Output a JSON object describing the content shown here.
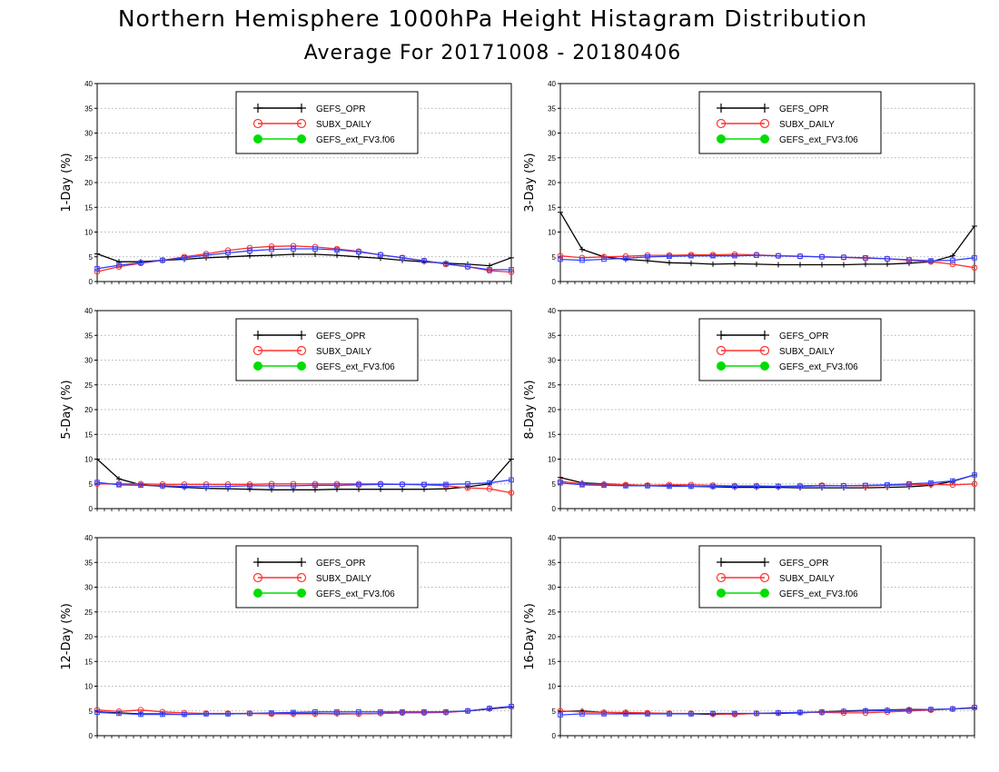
{
  "title": "Northern Hemisphere 1000hPa Height Histagram Distribution",
  "subtitle": "Average For 20171008 - 20180406",
  "colors": {
    "GEFS_OPR": "#000000",
    "SUBX_DAILY": "#ff3030",
    "GEFS_ext_FV3.f06": "#00dd00",
    "blue_series": "#3040ff"
  },
  "legend_labels": [
    "GEFS_OPR",
    "SUBX_DAILY",
    "GEFS_ext_FV3.f06"
  ],
  "chart_data": [
    {
      "type": "line",
      "ylabel": "1-Day (%)",
      "ylim": [
        0,
        40
      ],
      "yticks": [
        0,
        5,
        10,
        15,
        20,
        25,
        30,
        35,
        40
      ],
      "grid": true,
      "legend": "top-center",
      "series": [
        {
          "name": "GEFS_OPR",
          "values": [
            5.6,
            4.0,
            4.0,
            4.3,
            4.5,
            4.8,
            5.0,
            5.2,
            5.3,
            5.5,
            5.5,
            5.3,
            5.0,
            4.7,
            4.3,
            4.0,
            3.7,
            3.5,
            3.2,
            4.8
          ]
        },
        {
          "name": "SUBX_DAILY",
          "values": [
            2.0,
            3.0,
            3.7,
            4.3,
            5.0,
            5.6,
            6.3,
            6.8,
            7.1,
            7.2,
            7.0,
            6.6,
            6.1,
            5.4,
            4.8,
            4.2,
            3.5,
            3.0,
            2.2,
            1.9
          ]
        },
        {
          "values": [
            2.6,
            3.3,
            3.8,
            4.3,
            4.8,
            5.3,
            5.8,
            6.2,
            6.5,
            6.6,
            6.6,
            6.4,
            6.0,
            5.4,
            4.8,
            4.2,
            3.6,
            3.0,
            2.4,
            2.4
          ]
        }
      ]
    },
    {
      "type": "line",
      "ylabel": "3-Day (%)",
      "ylim": [
        0,
        40
      ],
      "yticks": [
        0,
        5,
        10,
        15,
        20,
        25,
        30,
        35,
        40
      ],
      "grid": true,
      "legend": "top-center",
      "series": [
        {
          "name": "GEFS_OPR",
          "values": [
            14.0,
            6.5,
            5.0,
            4.5,
            4.2,
            3.8,
            3.7,
            3.5,
            3.6,
            3.5,
            3.4,
            3.4,
            3.4,
            3.4,
            3.5,
            3.5,
            3.7,
            4.0,
            5.2,
            11.2
          ]
        },
        {
          "name": "SUBX_DAILY",
          "values": [
            5.2,
            4.8,
            5.0,
            5.1,
            5.3,
            5.3,
            5.4,
            5.4,
            5.5,
            5.4,
            5.2,
            5.1,
            5.0,
            4.9,
            4.7,
            4.6,
            4.3,
            4.0,
            3.5,
            2.8
          ]
        },
        {
          "values": [
            4.5,
            4.3,
            4.5,
            4.7,
            5.0,
            5.1,
            5.2,
            5.2,
            5.2,
            5.3,
            5.2,
            5.1,
            5.0,
            4.9,
            4.8,
            4.6,
            4.4,
            4.2,
            4.3,
            4.8
          ]
        }
      ]
    },
    {
      "type": "line",
      "ylabel": "5-Day (%)",
      "ylim": [
        0,
        40
      ],
      "yticks": [
        0,
        5,
        10,
        15,
        20,
        25,
        30,
        35,
        40
      ],
      "grid": true,
      "legend": "top-center",
      "series": [
        {
          "name": "GEFS_OPR",
          "values": [
            10.0,
            6.0,
            4.8,
            4.5,
            4.3,
            4.1,
            4.0,
            3.9,
            3.8,
            3.8,
            3.8,
            3.9,
            3.9,
            3.9,
            3.9,
            3.9,
            4.0,
            4.4,
            5.0,
            10.0
          ]
        },
        {
          "name": "SUBX_DAILY",
          "values": [
            5.0,
            5.0,
            5.0,
            4.9,
            4.9,
            4.9,
            4.9,
            4.9,
            5.0,
            5.0,
            5.0,
            5.0,
            5.0,
            5.0,
            4.9,
            4.8,
            4.6,
            4.2,
            4.0,
            3.2
          ]
        },
        {
          "values": [
            5.3,
            4.8,
            4.7,
            4.6,
            4.5,
            4.5,
            4.5,
            4.6,
            4.6,
            4.6,
            4.7,
            4.7,
            4.8,
            4.9,
            4.9,
            4.9,
            4.9,
            5.0,
            5.2,
            5.8
          ]
        }
      ]
    },
    {
      "type": "line",
      "ylabel": "8-Day (%)",
      "ylim": [
        0,
        40
      ],
      "yticks": [
        0,
        5,
        10,
        15,
        20,
        25,
        30,
        35,
        40
      ],
      "grid": true,
      "legend": "top-center",
      "series": [
        {
          "name": "GEFS_OPR",
          "values": [
            6.3,
            5.2,
            5.0,
            4.8,
            4.7,
            4.6,
            4.5,
            4.4,
            4.3,
            4.3,
            4.3,
            4.2,
            4.2,
            4.2,
            4.2,
            4.3,
            4.4,
            4.7,
            5.5,
            6.8
          ]
        },
        {
          "name": "SUBX_DAILY",
          "values": [
            5.5,
            5.0,
            4.9,
            4.8,
            4.7,
            4.8,
            4.8,
            4.7,
            4.6,
            4.6,
            4.5,
            4.6,
            4.7,
            4.6,
            4.6,
            4.7,
            4.8,
            4.9,
            4.8,
            5.0
          ]
        },
        {
          "values": [
            5.2,
            4.8,
            4.7,
            4.6,
            4.6,
            4.5,
            4.5,
            4.5,
            4.5,
            4.5,
            4.5,
            4.5,
            4.6,
            4.6,
            4.7,
            4.8,
            5.0,
            5.2,
            5.6,
            6.8
          ]
        }
      ]
    },
    {
      "type": "line",
      "ylabel": "12-Day (%)",
      "ylim": [
        0,
        40
      ],
      "yticks": [
        0,
        5,
        10,
        15,
        20,
        25,
        30,
        35,
        40
      ],
      "grid": true,
      "legend": "top-center",
      "series": [
        {
          "name": "GEFS_OPR",
          "values": [
            4.8,
            4.6,
            4.4,
            4.4,
            4.3,
            4.4,
            4.4,
            4.5,
            4.5,
            4.5,
            4.5,
            4.4,
            4.4,
            4.5,
            4.6,
            4.7,
            4.8,
            5.0,
            5.4,
            5.8
          ]
        },
        {
          "name": "SUBX_DAILY",
          "values": [
            5.2,
            4.9,
            5.2,
            4.8,
            4.6,
            4.5,
            4.5,
            4.5,
            4.4,
            4.4,
            4.4,
            4.5,
            4.4,
            4.5,
            4.6,
            4.6,
            4.7,
            5.0,
            5.5,
            5.9
          ]
        },
        {
          "values": [
            4.7,
            4.5,
            4.3,
            4.3,
            4.3,
            4.4,
            4.4,
            4.5,
            4.6,
            4.7,
            4.8,
            4.8,
            4.8,
            4.8,
            4.8,
            4.8,
            4.8,
            5.0,
            5.5,
            5.9
          ]
        }
      ]
    },
    {
      "type": "line",
      "ylabel": "16-Day (%)",
      "ylim": [
        0,
        40
      ],
      "yticks": [
        0,
        5,
        10,
        15,
        20,
        25,
        30,
        35,
        40
      ],
      "grid": true,
      "legend": "top-center",
      "series": [
        {
          "name": "GEFS_OPR",
          "values": [
            4.9,
            5.0,
            4.7,
            4.6,
            4.5,
            4.5,
            4.4,
            4.3,
            4.4,
            4.5,
            4.5,
            4.6,
            4.8,
            5.0,
            5.1,
            5.2,
            5.3,
            5.3,
            5.4,
            5.6
          ]
        },
        {
          "name": "SUBX_DAILY",
          "values": [
            5.0,
            4.8,
            4.7,
            4.7,
            4.6,
            4.5,
            4.5,
            4.4,
            4.3,
            4.5,
            4.6,
            4.7,
            4.7,
            4.6,
            4.6,
            4.8,
            5.0,
            5.2,
            5.4,
            5.7
          ]
        },
        {
          "values": [
            4.2,
            4.4,
            4.4,
            4.4,
            4.4,
            4.4,
            4.4,
            4.5,
            4.5,
            4.5,
            4.6,
            4.7,
            4.8,
            4.9,
            5.0,
            5.1,
            5.2,
            5.3,
            5.4,
            5.7
          ]
        }
      ]
    }
  ]
}
